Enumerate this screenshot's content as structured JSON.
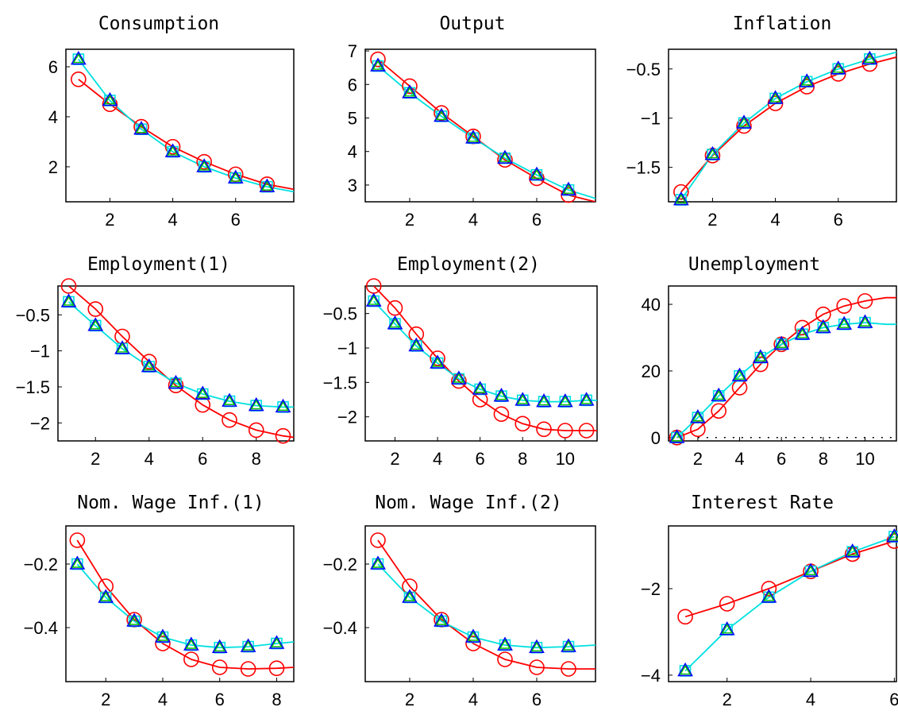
{
  "colors": {
    "axes": "#000000",
    "series_red": "#ff0000",
    "series_cyan": "#00e0e0",
    "marker_blue": "#0000ff",
    "marker_green": "#00c000"
  },
  "chart_data": [
    {
      "type": "line",
      "title": "Consumption",
      "xlim": [
        0.6,
        7.85
      ],
      "ylim": [
        0.6,
        6.7
      ],
      "xticks": [
        2,
        4,
        6
      ],
      "xtick_labels": [
        "2",
        "4",
        "6"
      ],
      "yticks": [
        2,
        4,
        6
      ],
      "ytick_labels": [
        "2",
        "4",
        "6"
      ],
      "series": [
        {
          "color": "red",
          "marker": "circle",
          "x": [
            1,
            2,
            3,
            4,
            5,
            6,
            7
          ],
          "y": [
            5.5,
            4.5,
            3.6,
            2.8,
            2.2,
            1.7,
            1.3
          ],
          "line_x": [
            1,
            2,
            3,
            4,
            5,
            6,
            7,
            7.85
          ],
          "line_y": [
            5.5,
            4.5,
            3.6,
            2.8,
            2.2,
            1.7,
            1.3,
            1.1
          ]
        },
        {
          "color": "cyan",
          "marker": "triangle",
          "x": [
            1,
            2,
            3,
            4,
            5,
            6,
            7
          ],
          "y": [
            6.3,
            4.65,
            3.5,
            2.6,
            2.0,
            1.55,
            1.2
          ],
          "line_x": [
            1,
            2,
            3,
            4,
            5,
            6,
            7,
            7.85
          ],
          "line_y": [
            6.3,
            4.65,
            3.5,
            2.6,
            2.0,
            1.55,
            1.2,
            1.0
          ]
        }
      ]
    },
    {
      "type": "line",
      "title": "Output",
      "xlim": [
        0.6,
        7.85
      ],
      "ylim": [
        2.5,
        7.05
      ],
      "xticks": [
        2,
        4,
        6
      ],
      "xtick_labels": [
        "2",
        "4",
        "6"
      ],
      "yticks": [
        3,
        4,
        5,
        6,
        7
      ],
      "ytick_labels": [
        "3",
        "4",
        "5",
        "6",
        "7"
      ],
      "series": [
        {
          "color": "red",
          "marker": "circle",
          "x": [
            1,
            2,
            3,
            4,
            5,
            6,
            7
          ],
          "y": [
            6.75,
            5.95,
            5.15,
            4.45,
            3.75,
            3.2,
            2.7
          ],
          "line_x": [
            1,
            2,
            3,
            4,
            5,
            6,
            7,
            7.85
          ],
          "line_y": [
            6.75,
            5.95,
            5.15,
            4.45,
            3.75,
            3.2,
            2.7,
            2.5
          ]
        },
        {
          "color": "cyan",
          "marker": "triangle",
          "x": [
            1,
            2,
            3,
            4,
            5,
            6,
            7
          ],
          "y": [
            6.55,
            5.75,
            5.05,
            4.4,
            3.8,
            3.3,
            2.85
          ],
          "line_x": [
            1,
            2,
            3,
            4,
            5,
            6,
            7,
            7.85
          ],
          "line_y": [
            6.55,
            5.75,
            5.05,
            4.4,
            3.8,
            3.3,
            2.85,
            2.6
          ]
        }
      ]
    },
    {
      "type": "line",
      "title": "Inflation",
      "xlim": [
        0.6,
        7.85
      ],
      "ylim": [
        -1.85,
        -0.3
      ],
      "xticks": [
        2,
        4,
        6
      ],
      "xtick_labels": [
        "2",
        "4",
        "6"
      ],
      "yticks": [
        -1.5,
        -1,
        -0.5
      ],
      "ytick_labels": [
        "−1.5",
        "−1",
        "−0.5"
      ],
      "series": [
        {
          "color": "red",
          "marker": "circle",
          "x": [
            1,
            2,
            3,
            4,
            5,
            6,
            7
          ],
          "y": [
            -1.75,
            -1.38,
            -1.08,
            -0.85,
            -0.68,
            -0.55,
            -0.45
          ],
          "line_x": [
            1,
            2,
            3,
            4,
            5,
            6,
            7,
            7.85
          ],
          "line_y": [
            -1.75,
            -1.38,
            -1.08,
            -0.85,
            -0.68,
            -0.55,
            -0.45,
            -0.38
          ]
        },
        {
          "color": "cyan",
          "marker": "triangle",
          "x": [
            1,
            2,
            3,
            4,
            5,
            6,
            7
          ],
          "y": [
            -1.83,
            -1.37,
            -1.05,
            -0.8,
            -0.63,
            -0.5,
            -0.4
          ],
          "line_x": [
            1,
            2,
            3,
            4,
            5,
            6,
            7,
            7.85
          ],
          "line_y": [
            -1.83,
            -1.37,
            -1.05,
            -0.8,
            -0.63,
            -0.5,
            -0.4,
            -0.33
          ]
        }
      ]
    },
    {
      "type": "line",
      "title": "Employment(1)",
      "xlim": [
        0.6,
        9.4
      ],
      "ylim": [
        -2.25,
        -0.1
      ],
      "xticks": [
        2,
        4,
        6,
        8
      ],
      "xtick_labels": [
        "2",
        "4",
        "6",
        "8"
      ],
      "yticks": [
        -2,
        -1.5,
        -1,
        -0.5
      ],
      "ytick_labels": [
        "−2",
        "−1.5",
        "−1",
        "−0.5"
      ],
      "series": [
        {
          "color": "red",
          "marker": "circle",
          "x": [
            1,
            2,
            3,
            4,
            5,
            6,
            7,
            8,
            9
          ],
          "y": [
            -0.1,
            -0.42,
            -0.8,
            -1.15,
            -1.48,
            -1.75,
            -1.96,
            -2.1,
            -2.18
          ],
          "line_x": [
            1,
            2,
            3,
            4,
            5,
            6,
            7,
            8,
            9,
            9.4
          ],
          "line_y": [
            -0.1,
            -0.42,
            -0.8,
            -1.15,
            -1.48,
            -1.75,
            -1.96,
            -2.1,
            -2.18,
            -2.2
          ]
        },
        {
          "color": "cyan",
          "marker": "triangle",
          "x": [
            1,
            2,
            3,
            4,
            5,
            6,
            7,
            8,
            9
          ],
          "y": [
            -0.32,
            -0.65,
            -0.97,
            -1.22,
            -1.45,
            -1.6,
            -1.7,
            -1.76,
            -1.78
          ],
          "line_x": [
            1,
            2,
            3,
            4,
            5,
            6,
            7,
            8,
            9,
            9.4
          ],
          "line_y": [
            -0.32,
            -0.65,
            -0.97,
            -1.22,
            -1.45,
            -1.6,
            -1.7,
            -1.76,
            -1.78,
            -1.78
          ]
        }
      ]
    },
    {
      "type": "line",
      "title": "Employment(2)",
      "xlim": [
        0.6,
        11.5
      ],
      "ylim": [
        -2.35,
        -0.1
      ],
      "xticks": [
        2,
        4,
        6,
        8,
        10
      ],
      "xtick_labels": [
        "2",
        "4",
        "6",
        "8",
        "10"
      ],
      "yticks": [
        -2,
        -1.5,
        -1,
        -0.5
      ],
      "ytick_labels": [
        "−2",
        "−1.5",
        "−1",
        "−0.5"
      ],
      "series": [
        {
          "color": "red",
          "marker": "circle",
          "x": [
            1,
            2,
            3,
            4,
            5,
            6,
            7,
            8,
            9,
            10,
            11
          ],
          "y": [
            -0.1,
            -0.42,
            -0.8,
            -1.15,
            -1.48,
            -1.75,
            -1.96,
            -2.1,
            -2.18,
            -2.2,
            -2.2
          ],
          "line_x": [
            1,
            2,
            3,
            4,
            5,
            6,
            7,
            8,
            9,
            10,
            11,
            11.5
          ],
          "line_y": [
            -0.1,
            -0.42,
            -0.8,
            -1.15,
            -1.48,
            -1.75,
            -1.96,
            -2.1,
            -2.18,
            -2.2,
            -2.2,
            -2.2
          ]
        },
        {
          "color": "cyan",
          "marker": "triangle",
          "x": [
            1,
            2,
            3,
            4,
            5,
            6,
            7,
            8,
            9,
            10,
            11
          ],
          "y": [
            -0.32,
            -0.65,
            -0.97,
            -1.22,
            -1.45,
            -1.6,
            -1.7,
            -1.76,
            -1.78,
            -1.78,
            -1.76
          ],
          "line_x": [
            1,
            2,
            3,
            4,
            5,
            6,
            7,
            8,
            9,
            10,
            11,
            11.5
          ],
          "line_y": [
            -0.32,
            -0.65,
            -0.97,
            -1.22,
            -1.45,
            -1.6,
            -1.7,
            -1.76,
            -1.78,
            -1.78,
            -1.76,
            -1.76
          ]
        }
      ]
    },
    {
      "type": "line",
      "title": "Unemployment",
      "xlim": [
        0.6,
        11.5
      ],
      "ylim": [
        -1,
        45.5
      ],
      "xticks": [
        2,
        4,
        6,
        8,
        10
      ],
      "xtick_labels": [
        "2",
        "4",
        "6",
        "8",
        "10"
      ],
      "yticks": [
        0,
        20,
        40
      ],
      "ytick_labels": [
        "0",
        "20",
        "40"
      ],
      "zero_line": true,
      "series": [
        {
          "color": "red",
          "marker": "circle",
          "x": [
            1,
            2,
            3,
            4,
            5,
            6,
            7,
            8,
            9,
            10
          ],
          "y": [
            0,
            2.5,
            8,
            15,
            22,
            28,
            33,
            37,
            39.5,
            41
          ],
          "line_x": [
            1,
            2,
            3,
            4,
            5,
            6,
            7,
            8,
            9,
            10,
            11,
            11.5
          ],
          "line_y": [
            0,
            2.5,
            8,
            15,
            22,
            28,
            33,
            37,
            39.5,
            41,
            42,
            42
          ]
        },
        {
          "color": "cyan",
          "marker": "triangle",
          "x": [
            1,
            2,
            3,
            4,
            5,
            6,
            7,
            8,
            9,
            10
          ],
          "y": [
            0,
            6,
            12.5,
            18.5,
            24,
            28,
            31,
            33,
            34,
            34.5
          ],
          "line_x": [
            1,
            2,
            3,
            4,
            5,
            6,
            7,
            8,
            9,
            10,
            11,
            11.5
          ],
          "line_y": [
            0,
            6,
            12.5,
            18.5,
            24,
            28,
            31,
            33,
            34,
            34.5,
            34,
            34
          ]
        }
      ]
    },
    {
      "type": "line",
      "title": "Nom. Wage Inf.(1)",
      "xlim": [
        0.6,
        8.6
      ],
      "ylim": [
        -0.57,
        -0.08
      ],
      "xticks": [
        2,
        4,
        6,
        8
      ],
      "xtick_labels": [
        "2",
        "4",
        "6",
        "8"
      ],
      "yticks": [
        -0.4,
        -0.2
      ],
      "ytick_labels": [
        "−0.4",
        "−0.2"
      ],
      "series": [
        {
          "color": "red",
          "marker": "circle",
          "x": [
            1,
            2,
            3,
            4,
            5,
            6,
            7,
            8
          ],
          "y": [
            -0.125,
            -0.27,
            -0.375,
            -0.45,
            -0.5,
            -0.525,
            -0.53,
            -0.528
          ],
          "line_x": [
            1,
            2,
            3,
            4,
            5,
            6,
            7,
            8,
            8.6
          ],
          "line_y": [
            -0.125,
            -0.27,
            -0.375,
            -0.45,
            -0.5,
            -0.525,
            -0.53,
            -0.528,
            -0.525
          ]
        },
        {
          "color": "cyan",
          "marker": "triangle",
          "x": [
            1,
            2,
            3,
            4,
            5,
            6,
            7,
            8
          ],
          "y": [
            -0.2,
            -0.305,
            -0.38,
            -0.43,
            -0.455,
            -0.463,
            -0.46,
            -0.45
          ],
          "line_x": [
            1,
            2,
            3,
            4,
            5,
            6,
            7,
            8,
            8.6
          ],
          "line_y": [
            -0.2,
            -0.305,
            -0.38,
            -0.43,
            -0.455,
            -0.463,
            -0.46,
            -0.45,
            -0.445
          ]
        }
      ]
    },
    {
      "type": "line",
      "title": "Nom. Wage Inf.(2)",
      "xlim": [
        0.6,
        7.85
      ],
      "ylim": [
        -0.57,
        -0.08
      ],
      "xticks": [
        2,
        4,
        6
      ],
      "xtick_labels": [
        "2",
        "4",
        "6"
      ],
      "yticks": [
        -0.4,
        -0.2
      ],
      "ytick_labels": [
        "−0.4",
        "−0.2"
      ],
      "series": [
        {
          "color": "red",
          "marker": "circle",
          "x": [
            1,
            2,
            3,
            4,
            5,
            6,
            7
          ],
          "y": [
            -0.125,
            -0.27,
            -0.375,
            -0.45,
            -0.5,
            -0.525,
            -0.53
          ],
          "line_x": [
            1,
            2,
            3,
            4,
            5,
            6,
            7,
            7.85
          ],
          "line_y": [
            -0.125,
            -0.27,
            -0.375,
            -0.45,
            -0.5,
            -0.525,
            -0.53,
            -0.53
          ]
        },
        {
          "color": "cyan",
          "marker": "triangle",
          "x": [
            1,
            2,
            3,
            4,
            5,
            6,
            7
          ],
          "y": [
            -0.2,
            -0.305,
            -0.38,
            -0.43,
            -0.455,
            -0.463,
            -0.46
          ],
          "line_x": [
            1,
            2,
            3,
            4,
            5,
            6,
            7,
            7.85
          ],
          "line_y": [
            -0.2,
            -0.305,
            -0.38,
            -0.43,
            -0.455,
            -0.463,
            -0.46,
            -0.455
          ]
        }
      ]
    },
    {
      "type": "line",
      "title": "Interest Rate",
      "xlim": [
        0.6,
        6.05
      ],
      "ylim": [
        -4.15,
        -0.55
      ],
      "xticks": [
        2,
        4,
        6
      ],
      "xtick_labels": [
        "2",
        "4",
        "6"
      ],
      "yticks": [
        -4,
        -2
      ],
      "ytick_labels": [
        "−4",
        "−2"
      ],
      "series": [
        {
          "color": "red",
          "marker": "circle",
          "x": [
            1,
            2,
            3,
            4,
            5,
            6
          ],
          "y": [
            -2.65,
            -2.35,
            -2.0,
            -1.6,
            -1.2,
            -0.9
          ],
          "line_x": [
            1,
            2,
            3,
            4,
            5,
            6
          ],
          "line_y": [
            -2.65,
            -2.35,
            -2.0,
            -1.6,
            -1.2,
            -0.9
          ]
        },
        {
          "color": "cyan",
          "marker": "triangle",
          "x": [
            1,
            2,
            3,
            4,
            5,
            6
          ],
          "y": [
            -3.9,
            -2.95,
            -2.2,
            -1.6,
            -1.15,
            -0.8
          ],
          "line_x": [
            1,
            2,
            3,
            4,
            5,
            6
          ],
          "line_y": [
            -3.9,
            -2.95,
            -2.2,
            -1.6,
            -1.15,
            -0.8
          ]
        }
      ]
    }
  ]
}
